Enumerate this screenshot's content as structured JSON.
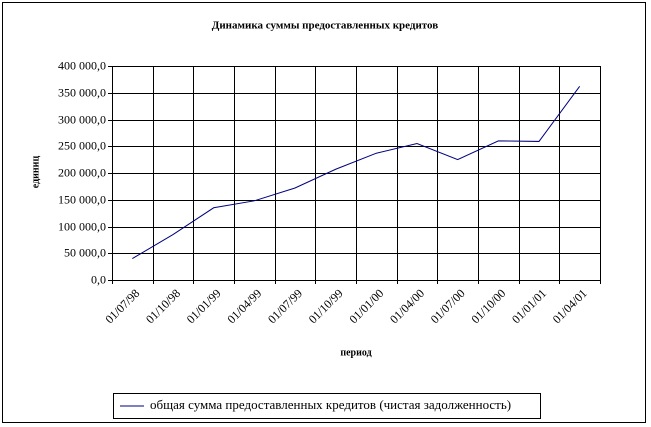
{
  "chart_data": {
    "type": "line",
    "title": "Динамика суммы предоставленных кредитов",
    "x_label": "период",
    "y_label": "единиц",
    "categories": [
      "01/07/98",
      "01/10/98",
      "01/01/99",
      "01/04/99",
      "01/07/99",
      "01/10/99",
      "01/01/00",
      "01/04/00",
      "01/07/00",
      "01/10/00",
      "01/01/01",
      "01/04/01"
    ],
    "series": [
      {
        "name": "общая сумма предоставленных кредитов (чистая задолженность)",
        "color": "#000080",
        "values": [
          40000,
          85000,
          135000,
          148000,
          172000,
          207000,
          237000,
          255000,
          225000,
          260000,
          259000,
          362000
        ]
      }
    ],
    "ylim": [
      0,
      400000
    ],
    "yticks": [
      {
        "value": 0,
        "label": "0,0"
      },
      {
        "value": 50000,
        "label": "50 000,0"
      },
      {
        "value": 100000,
        "label": "100 000,0"
      },
      {
        "value": 150000,
        "label": "150 000,0"
      },
      {
        "value": 200000,
        "label": "200 000,0"
      },
      {
        "value": 250000,
        "label": "250 000,0"
      },
      {
        "value": 300000,
        "label": "300 000,0"
      },
      {
        "value": 350000,
        "label": "350 000,0"
      },
      {
        "value": 400000,
        "label": "400 000,0"
      }
    ],
    "grid": true,
    "legend": "bottom"
  }
}
